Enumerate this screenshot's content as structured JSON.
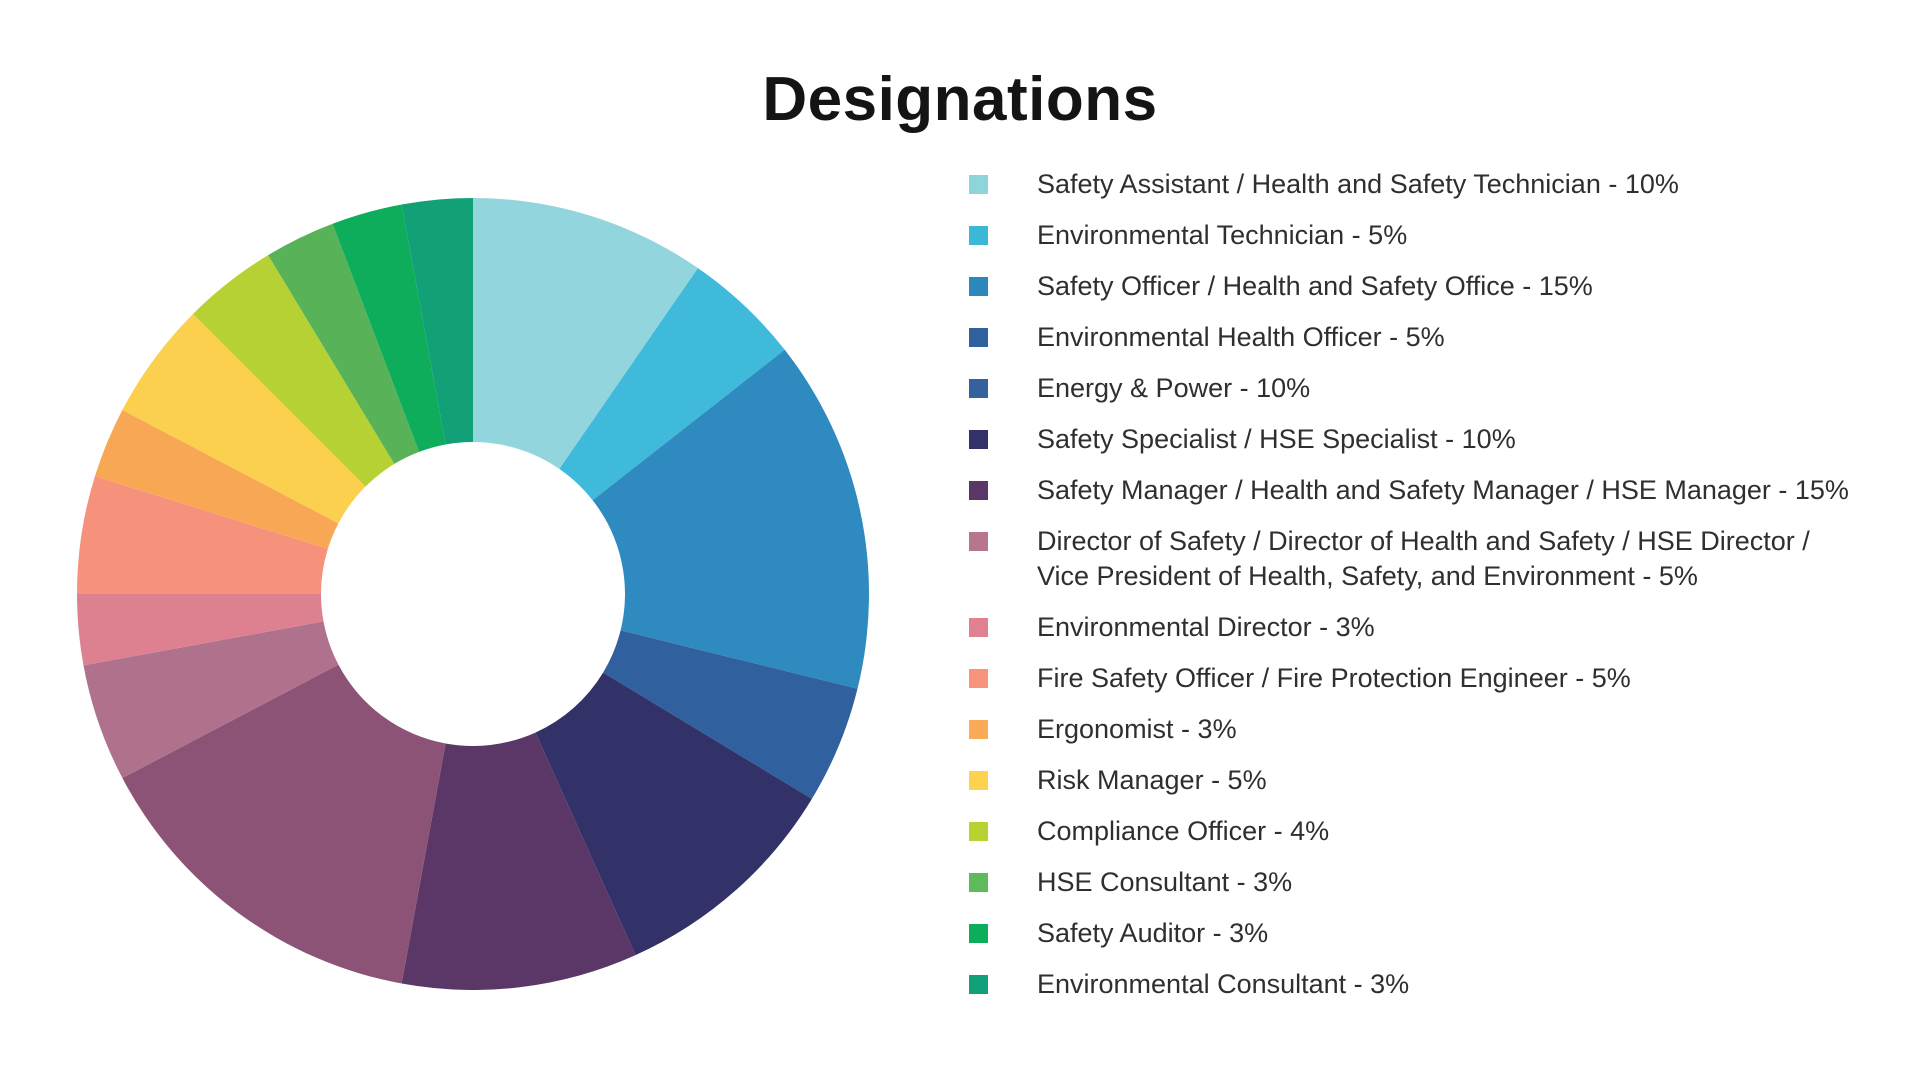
{
  "title": "Designations",
  "chart_data": {
    "type": "pie",
    "variant": "donut",
    "title": "Designations",
    "legend_position": "right",
    "start_angle_deg": 0,
    "direction": "clockwise",
    "inner_radius_ratio": 0.384,
    "items": [
      {
        "label": "Safety Assistant / Health and Safety Technician",
        "value_pct": 10,
        "slice_color": "#92D5DD",
        "legend_color": "#8ED4DB",
        "display_lines": [
          "Safety Assistant / Health and Safety Technician - 10%"
        ]
      },
      {
        "label": "Environmental Technician",
        "value_pct": 5,
        "slice_color": "#3FBADA",
        "legend_color": "#3CB8D6",
        "display_lines": [
          "Environmental Technician - 5%"
        ]
      },
      {
        "label": "Safety Officer / Health and Safety Office",
        "value_pct": 15,
        "slice_color": "#2E8ABF",
        "legend_color": "#2C87BD",
        "display_lines": [
          "Safety Officer / Health and Safety Office - 15%"
        ]
      },
      {
        "label": "Environmental Health Officer",
        "value_pct": 5,
        "slice_color": "#30609D",
        "legend_color": "#30609D",
        "display_lines": [
          "Environmental Health Officer - 5%"
        ]
      },
      {
        "label": "Energy & Power",
        "value_pct": 10,
        "slice_color": "#333268",
        "legend_color": "#34629F",
        "display_lines": [
          "Energy & Power - 10%"
        ]
      },
      {
        "label": "Safety Specialist / HSE Specialist",
        "value_pct": 10,
        "slice_color": "#5B3768",
        "legend_color": "#333268",
        "display_lines": [
          "Safety Specialist / HSE Specialist - 10%"
        ]
      },
      {
        "label": "Safety Manager / Health and Safety Manager / HSE Manager",
        "value_pct": 15,
        "slice_color": "#8D5377",
        "legend_color": "#5B3767",
        "display_lines": [
          "Safety Manager / Health and Safety Manager / HSE Manager - 15%"
        ]
      },
      {
        "label": "Director of Safety / Director of Health and Safety / HSE Director / Vice President of Health, Safety, and Environment",
        "value_pct": 5,
        "slice_color": "#B0718C",
        "legend_color": "#B7758F",
        "display_lines": [
          "Director of Safety / Director of Health and Safety / HSE Director /",
          "Vice President of Health, Safety, and Environment - 5%"
        ]
      },
      {
        "label": "Environmental Director",
        "value_pct": 3,
        "slice_color": "#DD8191",
        "legend_color": "#E08090",
        "display_lines": [
          "Environmental Director - 3%"
        ]
      },
      {
        "label": "Fire Safety Officer / Fire Protection Engineer",
        "value_pct": 5,
        "slice_color": "#F6927C",
        "legend_color": "#F8937C",
        "display_lines": [
          "Fire Safety Officer / Fire Protection Engineer - 5%"
        ]
      },
      {
        "label": "Ergonomist",
        "value_pct": 3,
        "slice_color": "#F8A855",
        "legend_color": "#F9AB57",
        "display_lines": [
          "Ergonomist - 3%"
        ]
      },
      {
        "label": "Risk Manager",
        "value_pct": 5,
        "slice_color": "#FBD04E",
        "legend_color": "#FDD24E",
        "display_lines": [
          "Risk Manager - 5%"
        ]
      },
      {
        "label": "Compliance Officer",
        "value_pct": 4,
        "slice_color": "#B5D133",
        "legend_color": "#B8D232",
        "display_lines": [
          "Compliance Officer - 4%"
        ]
      },
      {
        "label": "HSE Consultant",
        "value_pct": 3,
        "slice_color": "#57B258",
        "legend_color": "#5FBA5C",
        "display_lines": [
          "HSE Consultant - 3%"
        ]
      },
      {
        "label": "Safety Auditor",
        "value_pct": 3,
        "slice_color": "#0EAD5B",
        "legend_color": "#0CAE5C",
        "display_lines": [
          "Safety Auditor - 3%"
        ]
      },
      {
        "label": "Environmental Consultant",
        "value_pct": 3,
        "slice_color": "#12A077",
        "legend_color": "#11A07A",
        "display_lines": [
          "Environmental Consultant - 3%"
        ]
      }
    ]
  }
}
